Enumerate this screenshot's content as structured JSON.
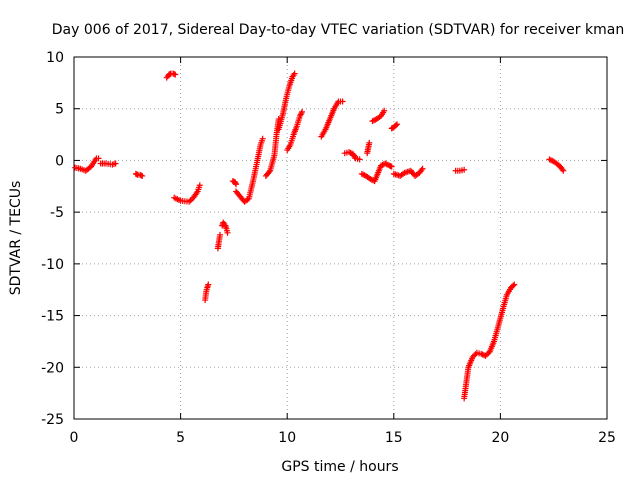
{
  "chart_data": {
    "type": "scatter",
    "title": "Day 006 of 2017, Sidereal Day-to-day VTEC variation (SDTVAR) for receiver kman",
    "xlabel": "GPS time / hours",
    "ylabel": "SDTVAR / TECUs",
    "xlim": [
      0,
      25
    ],
    "ylim": [
      -25,
      10
    ],
    "xticks": [
      0,
      5,
      10,
      15,
      20,
      25
    ],
    "yticks": [
      -25,
      -20,
      -15,
      -10,
      -5,
      0,
      5,
      10
    ],
    "grid": true,
    "marker": "plus",
    "color": "#ff0000",
    "segments": [
      {
        "x": [
          0.05,
          0.3,
          0.55,
          0.8,
          1.05,
          1.15
        ],
        "y": [
          -0.7,
          -0.8,
          -1.0,
          -0.6,
          0.2,
          0.2
        ]
      },
      {
        "x": [
          1.25,
          1.5,
          1.8,
          1.95
        ],
        "y": [
          -0.3,
          -0.3,
          -0.4,
          -0.3
        ]
      },
      {
        "x": [
          2.9,
          3.0,
          3.1,
          3.2
        ],
        "y": [
          -1.3,
          -1.4,
          -1.4,
          -1.5
        ]
      },
      {
        "x": [
          4.35,
          4.45,
          4.55,
          4.65,
          4.75
        ],
        "y": [
          8.0,
          8.3,
          8.4,
          8.4,
          8.3
        ]
      },
      {
        "x": [
          4.7,
          5.0,
          5.4,
          5.6,
          5.8,
          5.9
        ],
        "y": [
          -3.6,
          -3.9,
          -4.0,
          -3.6,
          -3.0,
          -2.4
        ]
      },
      {
        "x": [
          6.15,
          6.2,
          6.25,
          6.3
        ],
        "y": [
          -13.5,
          -12.7,
          -12.3,
          -12.0
        ]
      },
      {
        "x": [
          6.75,
          6.8,
          6.85
        ],
        "y": [
          -8.5,
          -7.8,
          -7.2
        ]
      },
      {
        "x": [
          6.95,
          7.0,
          7.1,
          7.15,
          7.2
        ],
        "y": [
          -6.3,
          -6.0,
          -6.3,
          -6.6,
          -7.0
        ]
      },
      {
        "x": [
          7.45,
          7.55,
          7.6
        ],
        "y": [
          -2.0,
          -2.1,
          -2.3
        ]
      },
      {
        "x": [
          7.6,
          7.8,
          8.0,
          8.2,
          8.4,
          8.6,
          8.75,
          8.85
        ],
        "y": [
          -3.0,
          -3.5,
          -4.0,
          -3.7,
          -2.0,
          0.0,
          1.5,
          2.1
        ]
      },
      {
        "x": [
          9.0,
          9.2,
          9.4,
          9.5,
          9.6
        ],
        "y": [
          -1.5,
          -1.0,
          0.5,
          2.5,
          4.0
        ]
      },
      {
        "x": [
          9.6,
          9.8,
          9.95,
          10.1,
          10.25,
          10.35
        ],
        "y": [
          3.0,
          4.5,
          6.0,
          7.2,
          8.1,
          8.4
        ]
      },
      {
        "x": [
          10.0,
          10.15,
          10.3,
          10.45,
          10.6,
          10.7
        ],
        "y": [
          1.0,
          1.5,
          2.5,
          3.3,
          4.3,
          4.7
        ]
      },
      {
        "x": [
          11.6,
          11.8,
          12.0,
          12.2,
          12.4,
          12.6
        ],
        "y": [
          2.3,
          3.0,
          4.0,
          5.0,
          5.7,
          5.7
        ]
      },
      {
        "x": [
          12.7,
          12.9,
          13.1,
          13.2,
          13.4
        ],
        "y": [
          0.7,
          0.8,
          0.6,
          0.2,
          0.1
        ]
      },
      {
        "x": [
          13.5,
          13.7,
          13.9,
          14.1,
          14.2,
          14.4,
          14.6,
          14.8,
          14.9
        ],
        "y": [
          -1.3,
          -1.5,
          -1.8,
          -2.0,
          -1.5,
          -0.5,
          -0.3,
          -0.5,
          -0.6
        ]
      },
      {
        "x": [
          13.75,
          13.8,
          13.85
        ],
        "y": [
          0.7,
          1.2,
          1.7
        ]
      },
      {
        "x": [
          14.0,
          14.2,
          14.4,
          14.55
        ],
        "y": [
          3.8,
          4.0,
          4.3,
          4.8
        ]
      },
      {
        "x": [
          14.9,
          15.0,
          15.1,
          15.15
        ],
        "y": [
          3.1,
          3.2,
          3.4,
          3.5
        ]
      },
      {
        "x": [
          15.0,
          15.3,
          15.5,
          15.8,
          16.0,
          16.2,
          16.35
        ],
        "y": [
          -1.3,
          -1.5,
          -1.2,
          -1.0,
          -1.5,
          -1.2,
          -0.8
        ]
      },
      {
        "x": [
          17.9,
          18.1,
          18.3
        ],
        "y": [
          -1.0,
          -1.0,
          -0.9
        ]
      },
      {
        "x": [
          18.3,
          18.4,
          18.5,
          18.7,
          18.9,
          19.1,
          19.3,
          19.5,
          19.7,
          19.9,
          20.1,
          20.3,
          20.5,
          20.65
        ],
        "y": [
          -23.0,
          -21.5,
          -20.0,
          -19.0,
          -18.6,
          -18.7,
          -18.9,
          -18.5,
          -17.5,
          -16.0,
          -14.5,
          -13.0,
          -12.3,
          -12.0
        ]
      },
      {
        "x": [
          22.3,
          22.5,
          22.7,
          22.85,
          22.95
        ],
        "y": [
          0.1,
          -0.1,
          -0.4,
          -0.7,
          -1.0
        ]
      }
    ]
  }
}
